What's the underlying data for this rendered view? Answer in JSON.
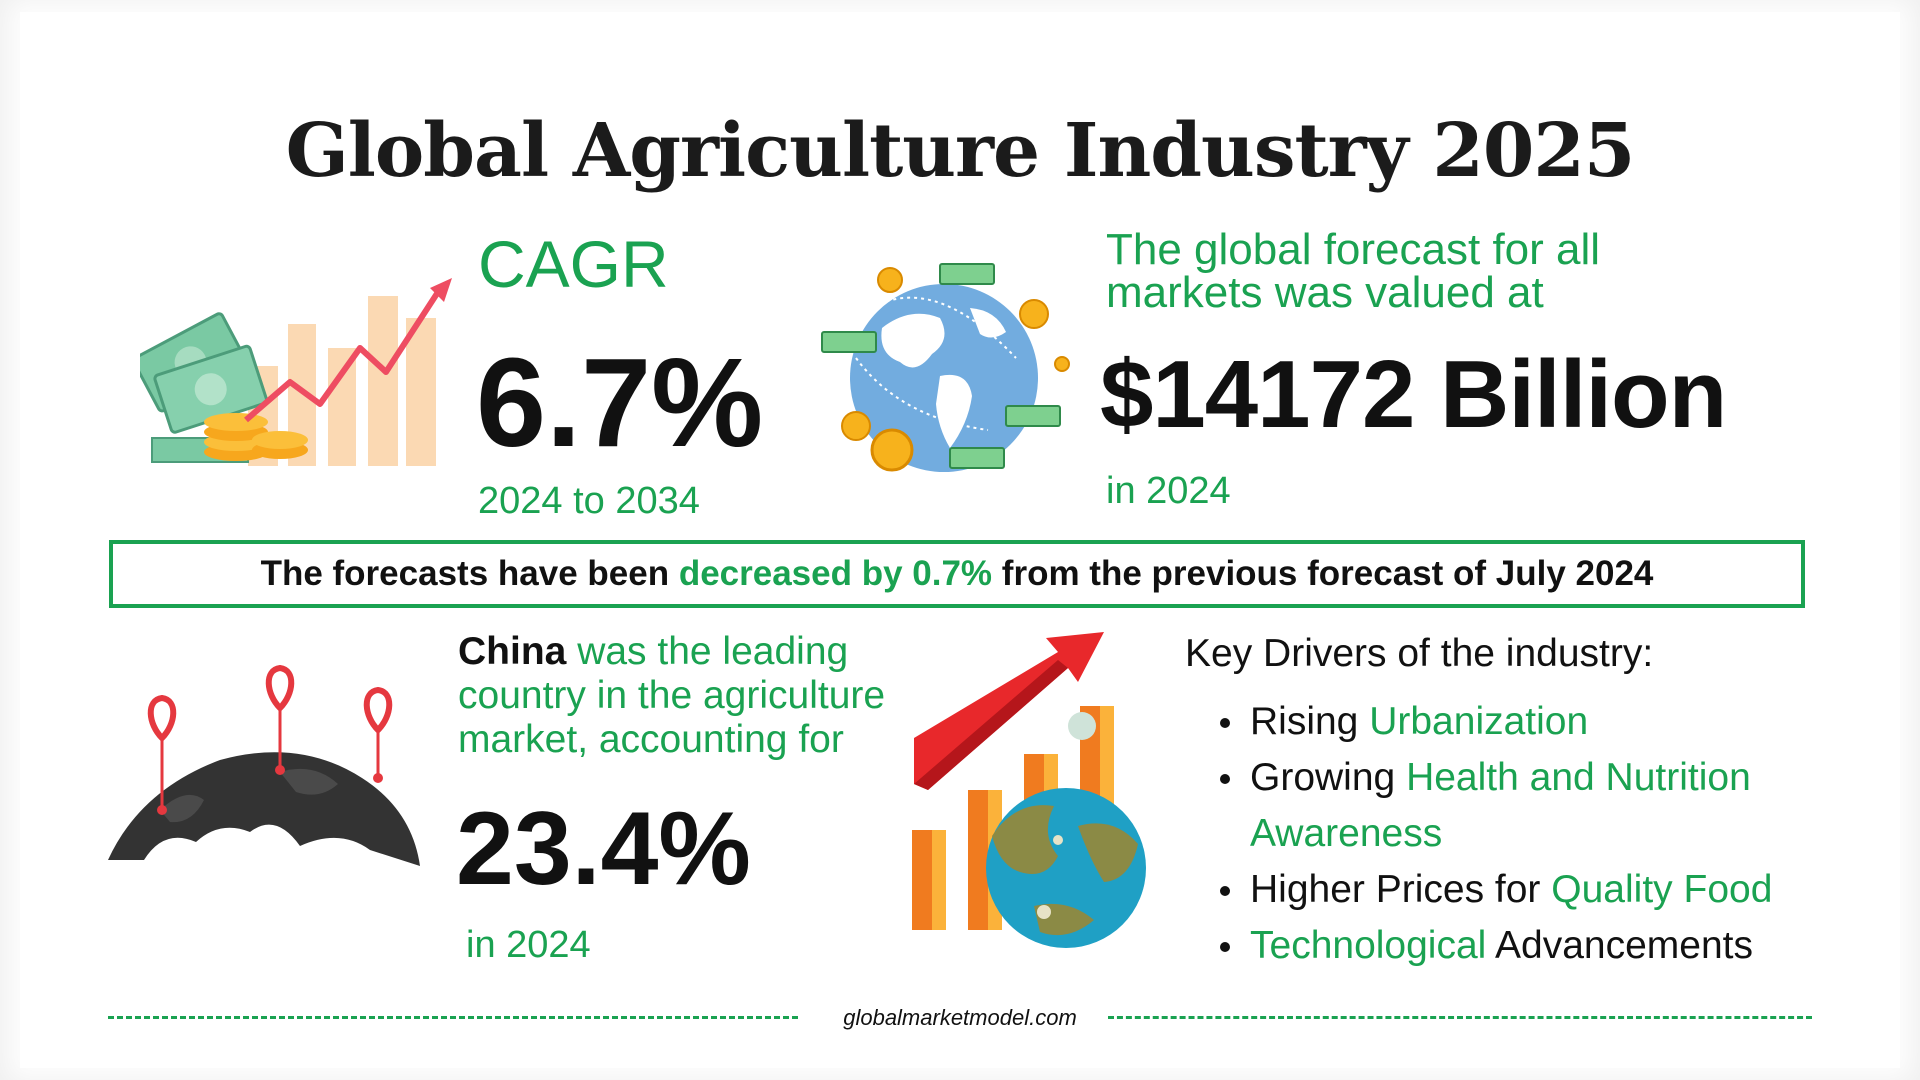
{
  "title": "Global Agriculture Industry 2025",
  "cagr": {
    "label": "CAGR",
    "value": "6.7%",
    "range": "2024 to 2034"
  },
  "forecast": {
    "text": "The global forecast for all markets was valued at",
    "value": "$14172 Billion",
    "year": "in 2024"
  },
  "banner": {
    "prefix": "The forecasts have been",
    "highlight": "decreased by 0.7%",
    "suffix": "from the previous forecast of July 2024"
  },
  "china": {
    "country": "China",
    "text": "was the leading country in the agriculture market, accounting for",
    "value": "23.4%",
    "year": "in 2024"
  },
  "drivers": {
    "title": "Key Drivers of the industry:",
    "items": [
      {
        "pre": "Rising",
        "highlight": "Urbanization",
        "post": ""
      },
      {
        "pre": "Growing",
        "highlight": "Health and Nutrition Awareness",
        "post": ""
      },
      {
        "pre": "Higher Prices for",
        "highlight": "Quality Food",
        "post": ""
      },
      {
        "pre": "",
        "highlight": "Technological",
        "post": "Advancements"
      }
    ]
  },
  "footer": {
    "site": "globalmarketmodel.com"
  },
  "colors": {
    "accent_green": "#1aa251",
    "text_dark": "#111111",
    "arrow_red": "#e8282b"
  },
  "icons": [
    "money-growth-chart-icon",
    "globe-money-icon",
    "world-map-pins-icon",
    "growth-chart-globe-icon"
  ]
}
